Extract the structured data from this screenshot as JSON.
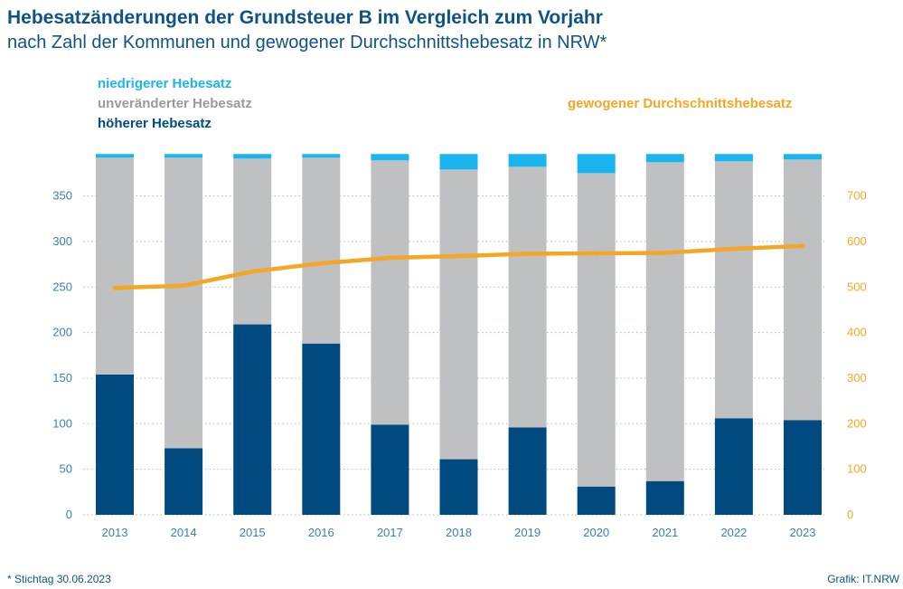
{
  "chart_data": {
    "type": "bar",
    "title": "Hebesatzänderungen der Grundsteuer B im Vergleich zum Vorjahr",
    "subtitle": "nach Zahl der Kommunen und gewogener Durchschnittshebesatz in NRW*",
    "categories": [
      "2013",
      "2014",
      "2015",
      "2016",
      "2017",
      "2018",
      "2019",
      "2020",
      "2021",
      "2022",
      "2023"
    ],
    "stacked": true,
    "series": [
      {
        "name": "höherer Hebesatz",
        "color": "#004a80",
        "values": [
          154,
          73,
          209,
          188,
          99,
          61,
          96,
          31,
          37,
          106,
          104
        ]
      },
      {
        "name": "unveränderter Hebesatz",
        "color": "#bfc0c2",
        "values": [
          238,
          319,
          182,
          204,
          290,
          318,
          286,
          344,
          350,
          282,
          286
        ]
      },
      {
        "name": "niedrigerer Hebesatz",
        "color": "#1ab4ef",
        "values": [
          4,
          4,
          5,
          4,
          7,
          17,
          14,
          21,
          9,
          8,
          6
        ]
      }
    ],
    "line_series": {
      "name": "gewogener Durchschnittshebesatz",
      "color": "#f5a623",
      "axis": "right",
      "values": [
        498,
        503,
        534,
        552,
        564,
        568,
        573,
        574,
        575,
        584,
        590
      ]
    },
    "left_axis": {
      "ticks": [
        0,
        50,
        100,
        150,
        200,
        250,
        300,
        350
      ],
      "ylim": [
        0,
        395
      ]
    },
    "right_axis": {
      "ticks": [
        0,
        100,
        200,
        300,
        400,
        500,
        600,
        700
      ],
      "ylim": [
        0,
        790
      ]
    },
    "grid": "dotted horizontal",
    "legend_left": [
      "niedrigerer Hebesatz",
      "unveränderter Hebesatz",
      "höherer Hebesatz"
    ],
    "legend_right": "gewogener Durchschnittshebesatz",
    "footnote": "* Stichtag 30.06.2023",
    "credit": "Grafik: IT.NRW",
    "colors": {
      "title": "#0f5384",
      "axis_left": "#3a7fb8",
      "axis_right": "#f5a623",
      "grid": "#9fb8d4"
    }
  }
}
